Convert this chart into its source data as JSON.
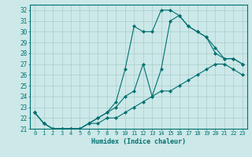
{
  "title": "",
  "xlabel": "Humidex (Indice chaleur)",
  "ylabel": "",
  "bg_color": "#cce8e8",
  "grid_color": "#b0d4d4",
  "line_color": "#007070",
  "ylim": [
    21,
    32.5
  ],
  "xlim": [
    -0.5,
    23.5
  ],
  "yticks": [
    21,
    22,
    23,
    24,
    25,
    26,
    27,
    28,
    29,
    30,
    31,
    32
  ],
  "xticks": [
    0,
    1,
    2,
    3,
    4,
    5,
    6,
    7,
    8,
    9,
    10,
    11,
    12,
    13,
    14,
    15,
    16,
    17,
    18,
    19,
    20,
    21,
    22,
    23
  ],
  "line1_x": [
    0,
    1,
    2,
    3,
    4,
    5,
    6,
    7,
    8,
    9,
    10,
    11,
    12,
    13,
    14,
    15,
    16,
    17,
    18,
    19,
    20,
    21,
    22,
    23
  ],
  "line1_y": [
    22.5,
    21.5,
    21.0,
    21.0,
    21.0,
    21.0,
    21.5,
    21.5,
    22.0,
    22.0,
    22.5,
    23.0,
    23.5,
    24.0,
    24.5,
    24.5,
    25.0,
    25.5,
    26.0,
    26.5,
    27.0,
    27.0,
    26.5,
    26.0
  ],
  "line2_x": [
    0,
    1,
    2,
    3,
    4,
    5,
    6,
    7,
    8,
    9,
    10,
    11,
    12,
    13,
    14,
    15,
    16,
    17,
    18,
    19,
    20,
    21,
    22,
    23
  ],
  "line2_y": [
    22.5,
    21.5,
    21.0,
    21.0,
    21.0,
    21.0,
    21.5,
    22.0,
    22.5,
    23.0,
    24.0,
    24.5,
    27.0,
    24.0,
    26.5,
    31.0,
    31.5,
    30.5,
    30.0,
    29.5,
    28.5,
    27.5,
    27.5,
    27.0
  ],
  "line3_x": [
    0,
    1,
    2,
    3,
    4,
    5,
    6,
    7,
    8,
    9,
    10,
    11,
    12,
    13,
    14,
    15,
    16,
    17,
    18,
    19,
    20,
    21,
    22,
    23
  ],
  "line3_y": [
    22.5,
    21.5,
    21.0,
    21.0,
    21.0,
    21.0,
    21.5,
    22.0,
    22.5,
    23.5,
    26.5,
    30.5,
    30.0,
    30.0,
    32.0,
    32.0,
    31.5,
    30.5,
    30.0,
    29.5,
    28.0,
    27.5,
    27.5,
    27.0
  ]
}
